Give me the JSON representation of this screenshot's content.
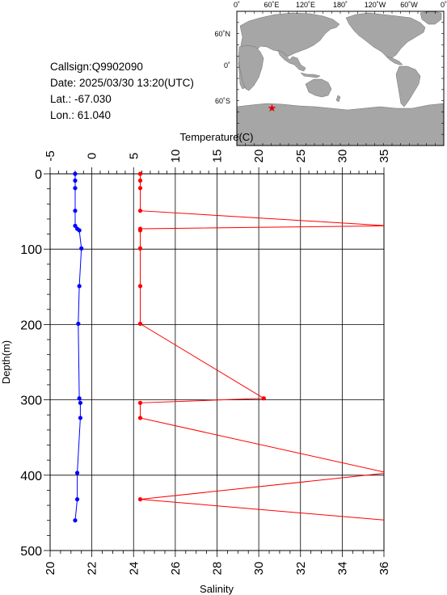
{
  "info": {
    "callsign": "Callsign:Q9902090",
    "date": "Date:  2025/03/30 13:20(UTC)",
    "lat": "Lat.:  -67.030",
    "lon": "Lon.:   61.040"
  },
  "map": {
    "top_labels": [
      "0˚",
      "60˚E",
      "120˚E",
      "180˚",
      "120˚W",
      "60˚W",
      "0˚"
    ],
    "lat_labels": [
      "60˚N",
      "0˚",
      "60˚S"
    ],
    "marker": {
      "lon": 61.04,
      "lat": -67.03
    },
    "colors": {
      "land": "#a6a6a6",
      "ocean": "#ffffff",
      "marker": "#e00000"
    }
  },
  "chart_data": {
    "type": "line",
    "title": "",
    "temperature_axis": {
      "label": "Temperature(C)",
      "range": [
        -5,
        35
      ],
      "ticks": [
        "-5",
        "0",
        "5",
        "10",
        "15",
        "20",
        "25",
        "30",
        "35"
      ]
    },
    "salinity_axis": {
      "label": "Salinity",
      "range": [
        20,
        36
      ],
      "ticks": [
        "20",
        "22",
        "24",
        "26",
        "28",
        "30",
        "32",
        "34",
        "36"
      ]
    },
    "depth_axis": {
      "label": "Depth(m)",
      "range": [
        0,
        500
      ],
      "inverted": true,
      "ticks": [
        "0",
        "100",
        "200",
        "300",
        "400",
        "500"
      ]
    },
    "grid": true,
    "series": [
      {
        "axis": "temperature",
        "color": "#ff0000",
        "points": [
          {
            "depth": 0,
            "value": 5.8
          },
          {
            "depth": 9,
            "value": 5.8
          },
          {
            "depth": 19,
            "value": 5.8
          },
          {
            "depth": 49,
            "value": 5.8
          },
          {
            "depth": 69,
            "value": 35.5
          },
          {
            "depth": 73,
            "value": 5.8
          },
          {
            "depth": 75,
            "value": 5.8
          },
          {
            "depth": 99,
            "value": 5.8
          },
          {
            "depth": 149,
            "value": 5.8
          },
          {
            "depth": 199,
            "value": 5.8
          },
          {
            "depth": 298,
            "value": 20.6
          },
          {
            "depth": 304,
            "value": 5.8
          },
          {
            "depth": 324,
            "value": 5.8
          },
          {
            "depth": 397,
            "value": 35.5
          },
          {
            "depth": 432,
            "value": 5.8
          },
          {
            "depth": 460,
            "value": 35.5
          }
        ]
      },
      {
        "axis": "salinity",
        "color": "#0000ff",
        "points": [
          {
            "depth": 0,
            "value": 21.2
          },
          {
            "depth": 9,
            "value": 21.2
          },
          {
            "depth": 19,
            "value": 21.2
          },
          {
            "depth": 49,
            "value": 21.2
          },
          {
            "depth": 69,
            "value": 21.2
          },
          {
            "depth": 73,
            "value": 21.3
          },
          {
            "depth": 75,
            "value": 21.4
          },
          {
            "depth": 99,
            "value": 21.5
          },
          {
            "depth": 149,
            "value": 21.4
          },
          {
            "depth": 199,
            "value": 21.35
          },
          {
            "depth": 298,
            "value": 21.4
          },
          {
            "depth": 304,
            "value": 21.45
          },
          {
            "depth": 324,
            "value": 21.45
          },
          {
            "depth": 397,
            "value": 21.3
          },
          {
            "depth": 432,
            "value": 21.3
          },
          {
            "depth": 460,
            "value": 21.2
          }
        ]
      }
    ]
  }
}
